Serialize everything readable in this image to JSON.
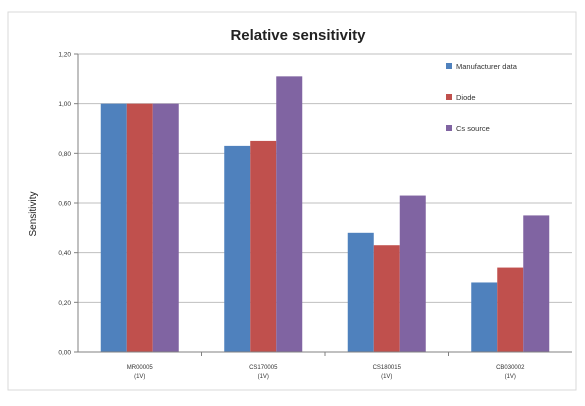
{
  "chart_data": {
    "type": "bar",
    "title": "Relative sensitivity",
    "ylabel": "Sensitivity",
    "xlabel": "",
    "ylim": [
      0,
      1.2
    ],
    "yticks": [
      "0,00",
      "0,20",
      "0,40",
      "0,60",
      "0,80",
      "1,00",
      "1,20"
    ],
    "categories": [
      {
        "line1": "MR00005",
        "line2": "(1V)"
      },
      {
        "line1": "CS170005",
        "line2": "(1V)"
      },
      {
        "line1": "CS180015",
        "line2": "(1V)"
      },
      {
        "line1": "CB030002",
        "line2": "(1V)"
      }
    ],
    "series": [
      {
        "name": "Manufacturer data",
        "color": "#4f81bd",
        "values": [
          1.0,
          0.83,
          0.48,
          0.28
        ]
      },
      {
        "name": "Diode",
        "color": "#c0504d",
        "values": [
          1.0,
          0.85,
          0.43,
          0.34
        ]
      },
      {
        "name": "Cs source",
        "color": "#8064a2",
        "values": [
          1.0,
          1.11,
          0.63,
          0.55
        ]
      }
    ],
    "grid": true,
    "legend_position": "top-right"
  }
}
